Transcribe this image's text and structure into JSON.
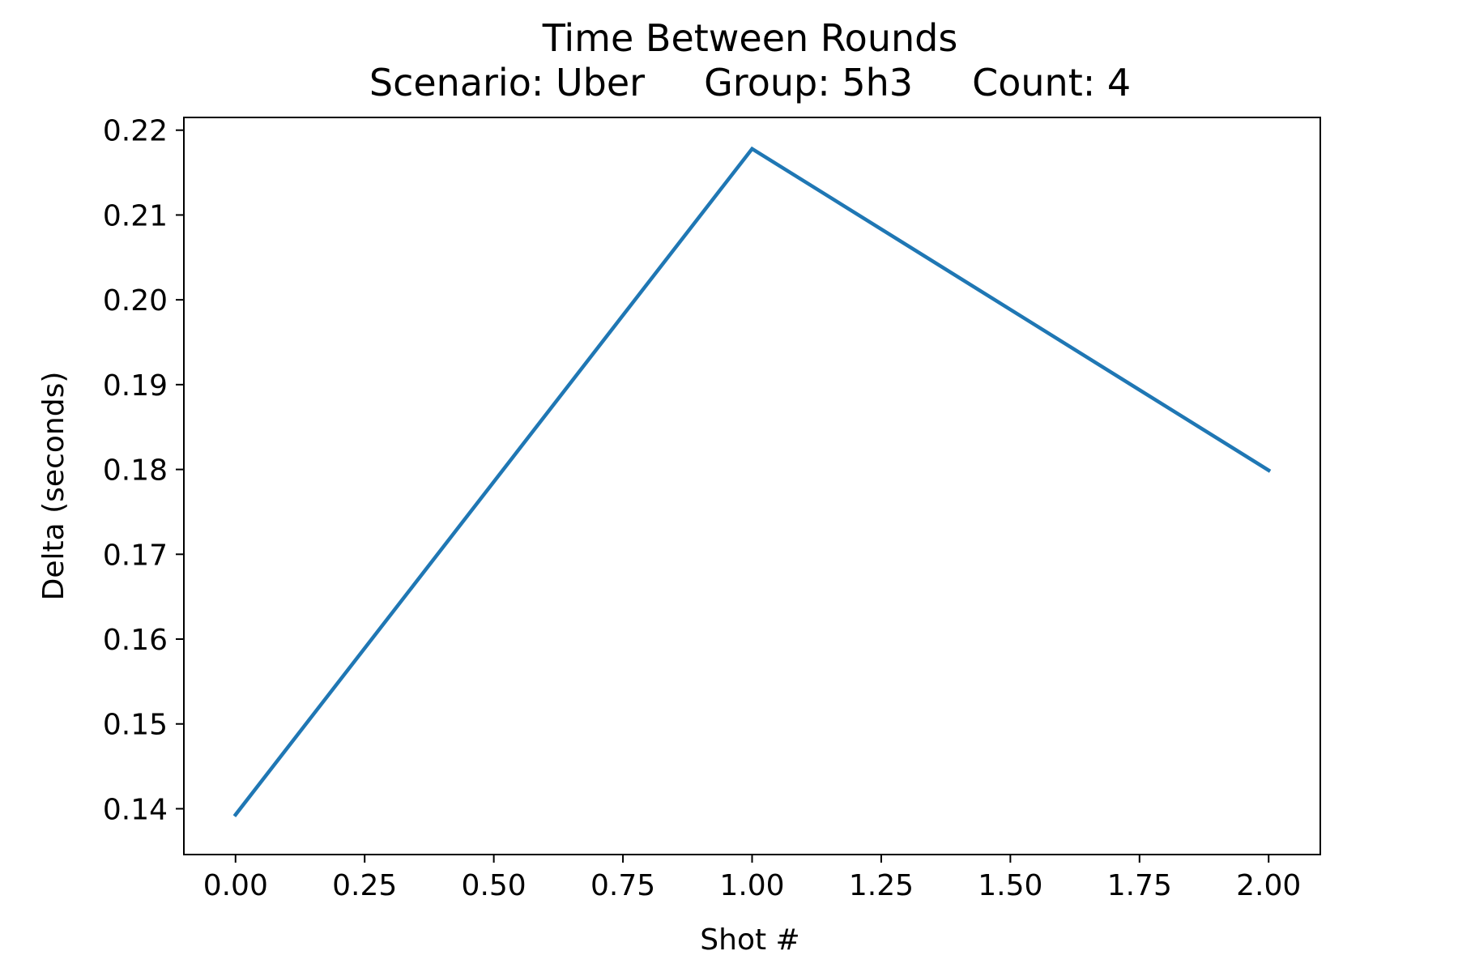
{
  "chart_data": {
    "type": "line",
    "title": "Time Between Rounds",
    "subtitle": "Scenario: Uber     Group: 5h3     Count: 4",
    "xlabel": "Shot #",
    "ylabel": "Delta (seconds)",
    "x": [
      0,
      1,
      2
    ],
    "series": [
      {
        "values": [
          0.1393,
          0.2178,
          0.1799
        ]
      }
    ],
    "xlim": [
      -0.1,
      2.1
    ],
    "ylim": [
      0.1346,
      0.2215
    ],
    "xticks": [
      0.0,
      0.25,
      0.5,
      0.75,
      1.0,
      1.25,
      1.5,
      1.75,
      2.0
    ],
    "xtick_labels": [
      "0.00",
      "0.25",
      "0.50",
      "0.75",
      "1.00",
      "1.25",
      "1.50",
      "1.75",
      "2.00"
    ],
    "yticks": [
      0.14,
      0.15,
      0.16,
      0.17,
      0.18,
      0.19,
      0.2,
      0.21,
      0.22
    ],
    "ytick_labels": [
      "0.14",
      "0.15",
      "0.16",
      "0.17",
      "0.18",
      "0.19",
      "0.20",
      "0.21",
      "0.22"
    ],
    "grid": false,
    "line_color": "#1f77b4"
  }
}
